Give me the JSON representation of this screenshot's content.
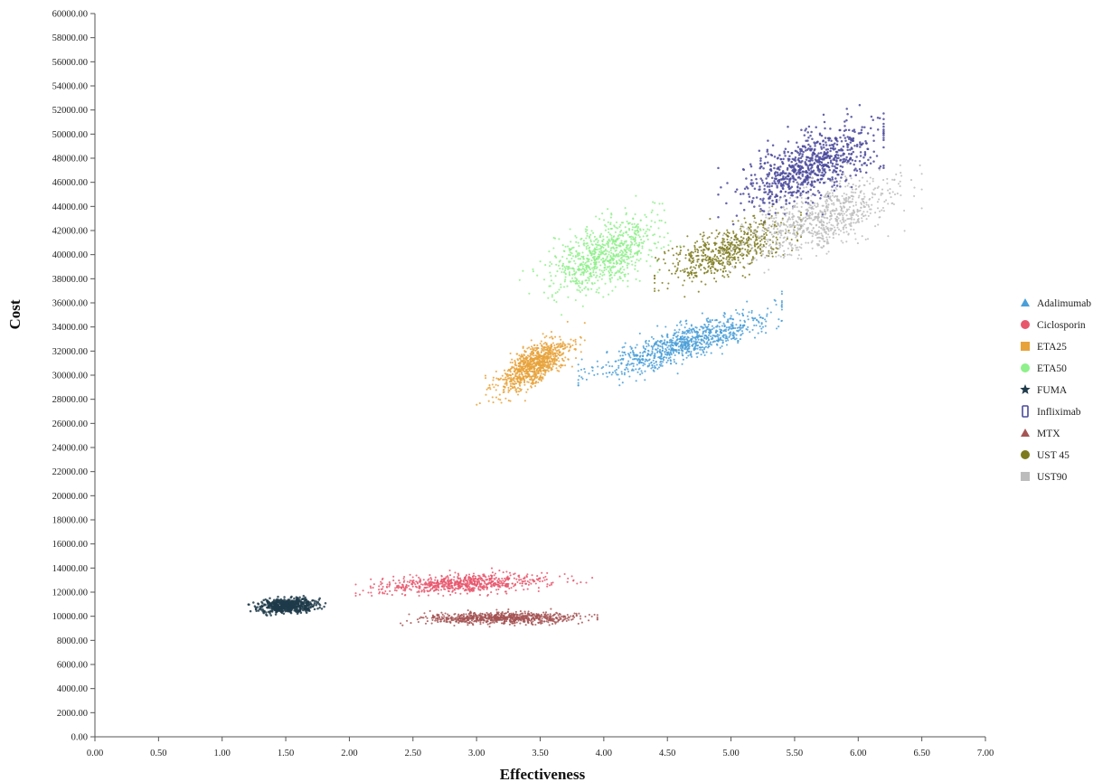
{
  "chart_data": {
    "type": "scatter",
    "xlabel": "Effectiveness",
    "ylabel": "Cost",
    "xlim": [
      0,
      7
    ],
    "ylim": [
      0,
      60000
    ],
    "x_ticks": [
      "0.00",
      "0.50",
      "1.00",
      "1.50",
      "2.00",
      "2.50",
      "3.00",
      "3.50",
      "4.00",
      "4.50",
      "5.00",
      "5.50",
      "6.00",
      "6.50",
      "7.00"
    ],
    "y_ticks": [
      "0.00",
      "2000.00",
      "4000.00",
      "6000.00",
      "8000.00",
      "10000.00",
      "12000.00",
      "14000.00",
      "16000.00",
      "18000.00",
      "20000.00",
      "22000.00",
      "24000.00",
      "26000.00",
      "28000.00",
      "30000.00",
      "32000.00",
      "34000.00",
      "36000.00",
      "38000.00",
      "40000.00",
      "42000.00",
      "44000.00",
      "46000.00",
      "48000.00",
      "50000.00",
      "52000.00",
      "54000.00",
      "56000.00",
      "58000.00",
      "60000.00"
    ],
    "grid": false,
    "legend_position": "right",
    "series": [
      {
        "name": "Adalimumab",
        "marker": "triangle",
        "color": "#4a9fd8",
        "n": 900,
        "center": [
          4.65,
          32700
        ],
        "sd": [
          0.34,
          1350
        ],
        "corr": 0.85,
        "x_range": [
          3.8,
          5.4
        ],
        "y_range": [
          27500,
          37000
        ]
      },
      {
        "name": "Ciclosporin",
        "marker": "circle",
        "color": "#e8566c",
        "n": 700,
        "center": [
          2.9,
          12700
        ],
        "sd": [
          0.33,
          380
        ],
        "corr": 0.3,
        "x_range": [
          2.05,
          3.95
        ],
        "y_range": [
          11700,
          14000
        ]
      },
      {
        "name": "ETA25",
        "marker": "square",
        "color": "#e8a23a",
        "n": 900,
        "center": [
          3.45,
          30800
        ],
        "sd": [
          0.14,
          1100
        ],
        "corr": 0.7,
        "x_range": [
          2.95,
          3.85
        ],
        "y_range": [
          26500,
          34500
        ]
      },
      {
        "name": "ETA50",
        "marker": "circle",
        "color": "#8ef08a",
        "n": 800,
        "center": [
          4.0,
          40000
        ],
        "sd": [
          0.2,
          1500
        ],
        "corr": 0.45,
        "x_range": [
          3.3,
          4.6
        ],
        "y_range": [
          35000,
          45000
        ]
      },
      {
        "name": "FUMA",
        "marker": "star",
        "color": "#1f3b4a",
        "n": 600,
        "center": [
          1.52,
          10900
        ],
        "sd": [
          0.11,
          280
        ],
        "corr": 0.2,
        "x_range": [
          1.05,
          1.9
        ],
        "y_range": [
          9700,
          11900
        ]
      },
      {
        "name": "Infliximab",
        "marker": "bar",
        "color": "#4b4a9c",
        "n": 800,
        "center": [
          5.62,
          47300
        ],
        "sd": [
          0.26,
          1700
        ],
        "corr": 0.65,
        "x_range": [
          4.9,
          6.2
        ],
        "y_range": [
          41500,
          53800
        ]
      },
      {
        "name": "MTX",
        "marker": "triangle",
        "color": "#a55454",
        "n": 750,
        "center": [
          3.2,
          9850
        ],
        "sd": [
          0.3,
          240
        ],
        "corr": 0.05,
        "x_range": [
          2.4,
          3.95
        ],
        "y_range": [
          9000,
          10700
        ]
      },
      {
        "name": "UST 45",
        "marker": "circle",
        "color": "#7c7a1c",
        "n": 600,
        "center": [
          4.95,
          40200
        ],
        "sd": [
          0.25,
          1300
        ],
        "corr": 0.65,
        "x_range": [
          4.4,
          5.55
        ],
        "y_range": [
          36500,
          44000
        ]
      },
      {
        "name": "UST90",
        "marker": "square",
        "color": "#bcbcbc",
        "n": 800,
        "center": [
          5.7,
          43000
        ],
        "sd": [
          0.3,
          1550
        ],
        "corr": 0.65,
        "x_range": [
          4.9,
          6.5
        ],
        "y_range": [
          38500,
          50000
        ]
      }
    ]
  }
}
